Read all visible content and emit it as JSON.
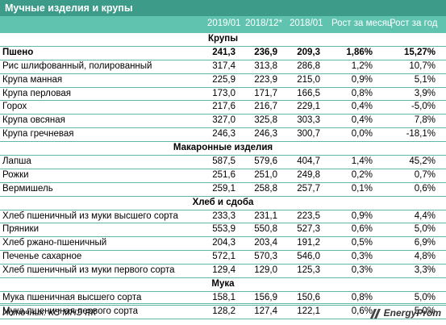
{
  "title": "Мучные изделия и крупы",
  "columns": [
    "2019/01",
    "2018/12*",
    "2018/01",
    "Рост за месяц",
    "Рост за год"
  ],
  "sections": [
    {
      "name": "Крупы",
      "rows": [
        {
          "name": "Пшено",
          "v1": "241,3",
          "v2": "236,9",
          "v3": "209,3",
          "m": "1,86%",
          "y": "15,27%",
          "bold": true
        },
        {
          "name": "Рис шлифованный, полированный",
          "v1": "317,4",
          "v2": "313,8",
          "v3": "286,8",
          "m": "1,2%",
          "y": "10,7%"
        },
        {
          "name": "Крупа манная",
          "v1": "225,9",
          "v2": "223,9",
          "v3": "215,0",
          "m": "0,9%",
          "y": "5,1%"
        },
        {
          "name": "Крупа перловая",
          "v1": "173,0",
          "v2": "171,7",
          "v3": "166,5",
          "m": "0,8%",
          "y": "3,9%"
        },
        {
          "name": "Горох",
          "v1": "217,6",
          "v2": "216,7",
          "v3": "229,1",
          "m": "0,4%",
          "y": "-5,0%"
        },
        {
          "name": "Крупа овсяная",
          "v1": "327,0",
          "v2": "325,8",
          "v3": "303,3",
          "m": "0,4%",
          "y": "7,8%"
        },
        {
          "name": "Крупа гречневая",
          "v1": "246,3",
          "v2": "246,3",
          "v3": "300,7",
          "m": "0,0%",
          "y": "-18,1%"
        }
      ]
    },
    {
      "name": "Макаронные изделия",
      "rows": [
        {
          "name": "Лапша",
          "v1": "587,5",
          "v2": "579,6",
          "v3": "404,7",
          "m": "1,4%",
          "y": "45,2%"
        },
        {
          "name": "Рожки",
          "v1": "251,6",
          "v2": "251,0",
          "v3": "249,8",
          "m": "0,2%",
          "y": "0,7%"
        },
        {
          "name": "Вермишель",
          "v1": "259,1",
          "v2": "258,8",
          "v3": "257,7",
          "m": "0,1%",
          "y": "0,6%"
        }
      ]
    },
    {
      "name": "Хлеб и сдоба",
      "rows": [
        {
          "name": "Хлеб пшеничный из муки высшего сорта",
          "v1": "233,3",
          "v2": "231,1",
          "v3": "223,5",
          "m": "0,9%",
          "y": "4,4%"
        },
        {
          "name": "Пряники",
          "v1": "553,9",
          "v2": "550,8",
          "v3": "527,3",
          "m": "0,6%",
          "y": "5,0%"
        },
        {
          "name": "Хлеб ржано-пшеничный",
          "v1": "204,3",
          "v2": "203,4",
          "v3": "191,2",
          "m": "0,5%",
          "y": "6,9%"
        },
        {
          "name": "Печенье сахарное",
          "v1": "572,1",
          "v2": "570,3",
          "v3": "546,0",
          "m": "0,3%",
          "y": "4,8%"
        },
        {
          "name": "Хлеб пшеничный из муки первого сорта",
          "v1": "129,4",
          "v2": "129,0",
          "v3": "125,3",
          "m": "0,3%",
          "y": "3,3%"
        }
      ]
    },
    {
      "name": "Мука",
      "rows": [
        {
          "name": "Мука пшеничная высшего сорта",
          "v1": "158,1",
          "v2": "156,9",
          "v3": "150,6",
          "m": "0,8%",
          "y": "5,0%"
        },
        {
          "name": "Мука пшеничная первого сорта",
          "v1": "128,2",
          "v2": "127,4",
          "v3": "122,1",
          "m": "0,6%",
          "y": "5,0%"
        }
      ]
    }
  ],
  "source": "Источник: КС МНЭ РК",
  "logo_text": "EnergyProm",
  "colors": {
    "title_bg": "#3d9b8a",
    "header_bg": "#5fc3af",
    "rule": "#5fb8a6"
  }
}
